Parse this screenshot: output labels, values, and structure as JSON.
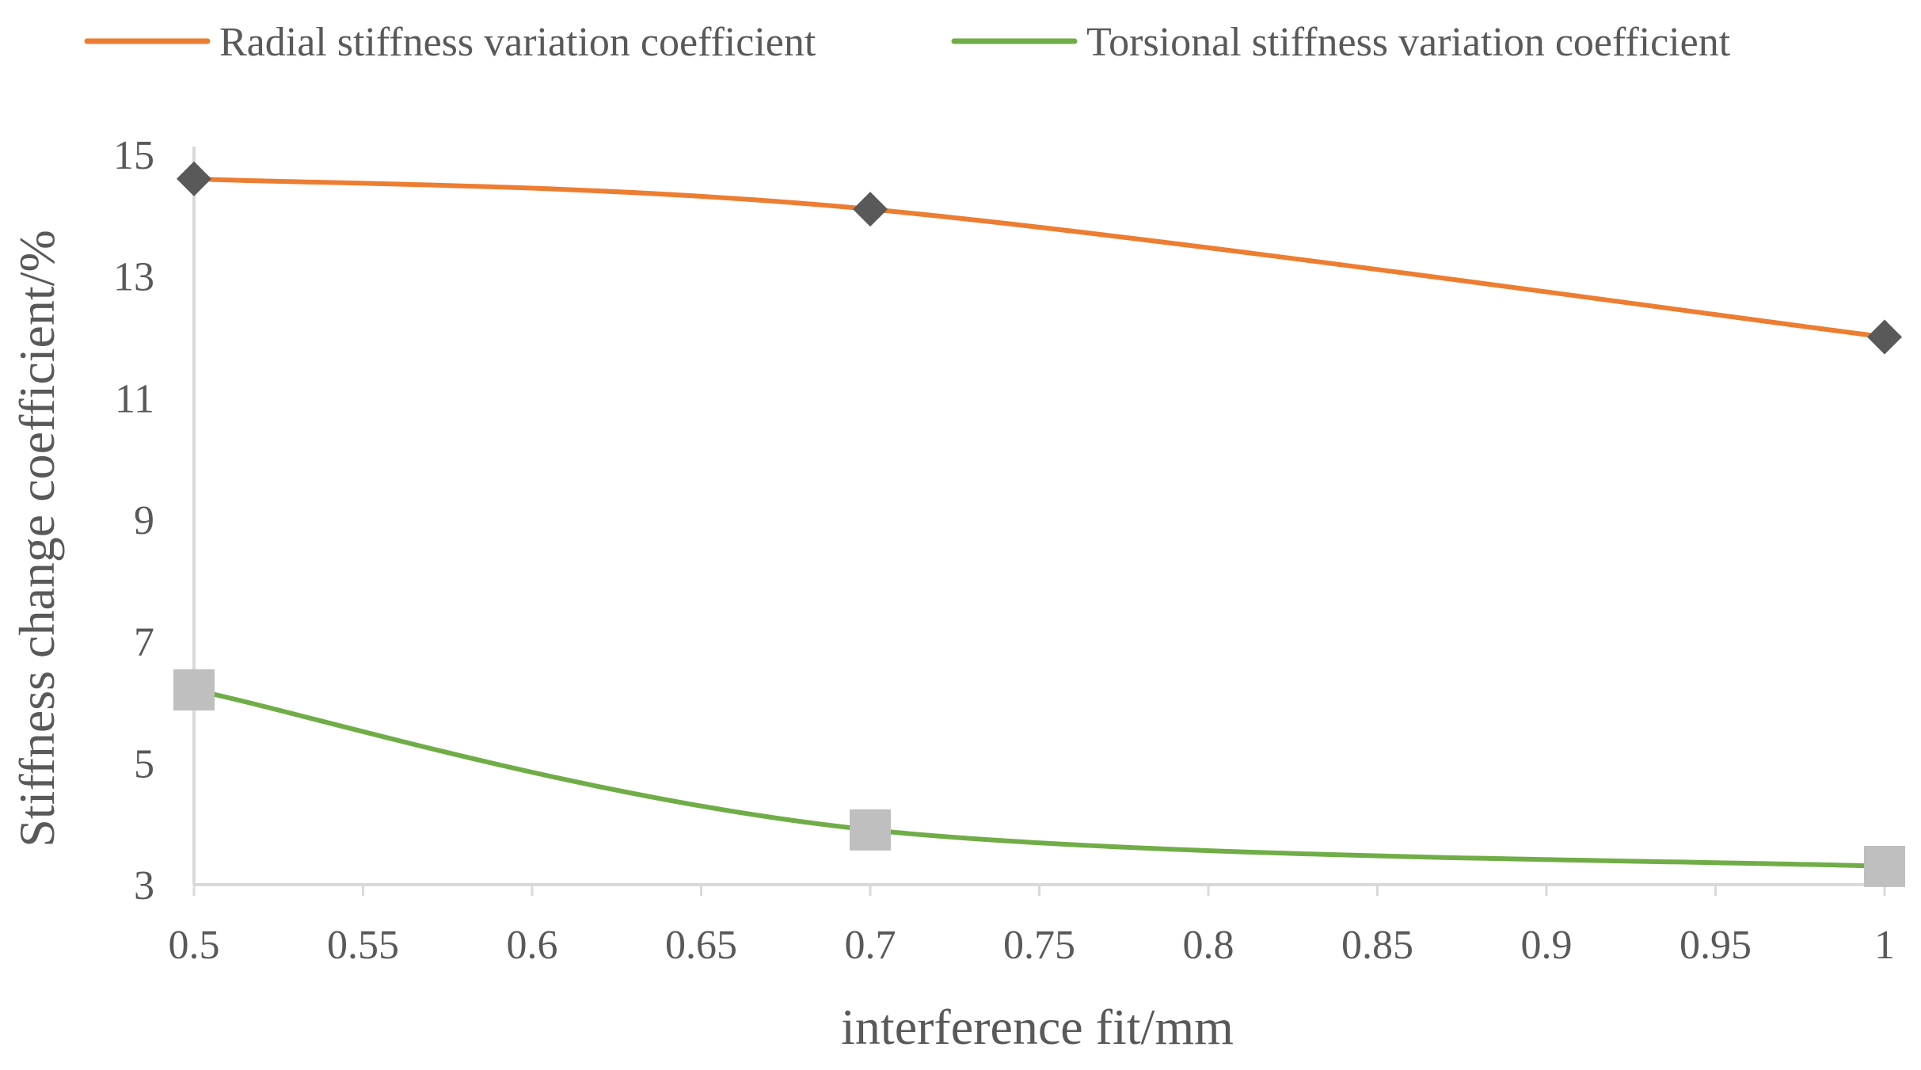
{
  "chart_data": {
    "type": "line",
    "title": "",
    "xlabel": "interference fit/mm",
    "ylabel": "Stiffness change coefficient/%",
    "xlim": [
      0.5,
      1
    ],
    "ylim": [
      3,
      15
    ],
    "x_ticks": [
      0.5,
      0.55,
      0.6,
      0.65,
      0.7,
      0.75,
      0.8,
      0.85,
      0.9,
      0.95,
      1
    ],
    "x_tick_labels": [
      "0.5",
      "0.55",
      "0.6",
      "0.65",
      "0.7",
      "0.75",
      "0.8",
      "0.85",
      "0.9",
      "0.95",
      "1"
    ],
    "y_ticks": [
      3,
      5,
      7,
      9,
      11,
      13,
      15
    ],
    "y_tick_labels": [
      "3",
      "5",
      "7",
      "9",
      "11",
      "13",
      "15"
    ],
    "grid": false,
    "legend_position": "top",
    "series": [
      {
        "name": "Radial stiffness variation coefficient",
        "line_color": "#ED7D31",
        "marker": "diamond",
        "marker_color": "#595959",
        "smooth": true,
        "x": [
          0.5,
          0.7,
          1
        ],
        "values": [
          14.6,
          14.1,
          12.0
        ]
      },
      {
        "name": "Torsional stiffness variation coefficient",
        "line_color": "#70AD47",
        "marker": "square",
        "marker_color": "#BFBFBF",
        "smooth": true,
        "x": [
          0.5,
          0.7,
          1
        ],
        "values": [
          6.2,
          3.9,
          3.3
        ]
      }
    ]
  }
}
